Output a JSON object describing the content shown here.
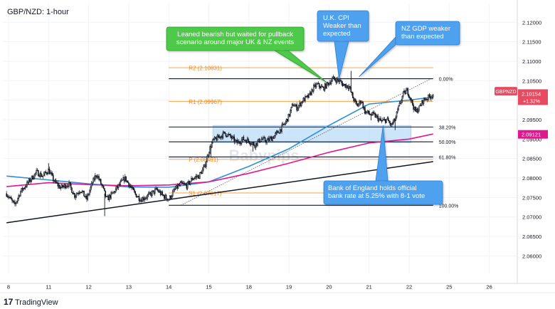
{
  "header": {
    "symbol_title": "GBP/NZD: 1-hour"
  },
  "footer": {
    "brand": "TradingView"
  },
  "watermark": "Babypips",
  "chart_data": {
    "type": "candlestick",
    "title": "GBP/NZD: 1-hour",
    "ylim": [
      2.0555,
      2.1248
    ],
    "y_ticks": [
      2.12,
      2.115,
      2.11,
      2.105,
      2.1,
      2.095,
      2.09,
      2.085,
      2.08,
      2.075,
      2.07,
      2.065,
      2.06
    ],
    "x_ticks": [
      {
        "label": "8",
        "t": 0.0
      },
      {
        "label": "11",
        "t": 1.0
      },
      {
        "label": "12",
        "t": 2.0
      },
      {
        "label": "13",
        "t": 3.0
      },
      {
        "label": "14",
        "t": 4.0
      },
      {
        "label": "15",
        "t": 5.0
      },
      {
        "label": "18",
        "t": 6.0
      },
      {
        "label": "19",
        "t": 7.0
      },
      {
        "label": "20",
        "t": 8.0
      },
      {
        "label": "21",
        "t": 9.0
      },
      {
        "label": "22",
        "t": 10.0
      },
      {
        "label": "25",
        "t": 11.0
      },
      {
        "label": "26",
        "t": 12.0
      }
    ],
    "price_path": [
      [
        -0.05,
        2.076
      ],
      [
        0.05,
        2.0745
      ],
      [
        0.15,
        2.073
      ],
      [
        0.3,
        2.0765
      ],
      [
        0.5,
        2.079
      ],
      [
        0.7,
        2.0815
      ],
      [
        0.85,
        2.0805
      ],
      [
        1.0,
        2.082
      ],
      [
        1.15,
        2.079
      ],
      [
        1.3,
        2.0775
      ],
      [
        1.5,
        2.0785
      ],
      [
        1.65,
        2.0755
      ],
      [
        1.8,
        2.077
      ],
      [
        1.95,
        2.0745
      ],
      [
        2.1,
        2.079
      ],
      [
        2.2,
        2.081
      ],
      [
        2.35,
        2.0775
      ],
      [
        2.45,
        2.0745
      ],
      [
        2.6,
        2.076
      ],
      [
        2.75,
        2.078
      ],
      [
        2.9,
        2.08
      ],
      [
        3.0,
        2.0785
      ],
      [
        3.15,
        2.076
      ],
      [
        3.3,
        2.0745
      ],
      [
        3.5,
        2.0755
      ],
      [
        3.7,
        2.077
      ],
      [
        3.85,
        2.0755
      ],
      [
        4.0,
        2.0745
      ],
      [
        4.15,
        2.077
      ],
      [
        4.3,
        2.0785
      ],
      [
        4.45,
        2.078
      ],
      [
        4.6,
        2.08
      ],
      [
        4.75,
        2.0805
      ],
      [
        4.9,
        2.083
      ],
      [
        5.0,
        2.087
      ],
      [
        5.1,
        2.0895
      ],
      [
        5.25,
        2.0905
      ],
      [
        5.4,
        2.0915
      ],
      [
        5.55,
        2.0905
      ],
      [
        5.7,
        2.089
      ],
      [
        5.85,
        2.09
      ],
      [
        6.0,
        2.0895
      ],
      [
        6.15,
        2.0885
      ],
      [
        6.3,
        2.09
      ],
      [
        6.45,
        2.0895
      ],
      [
        6.6,
        2.0905
      ],
      [
        6.75,
        2.092
      ],
      [
        6.9,
        2.094
      ],
      [
        7.0,
        2.096
      ],
      [
        7.1,
        2.099
      ],
      [
        7.2,
        2.098
      ],
      [
        7.35,
        2.1
      ],
      [
        7.5,
        2.101
      ],
      [
        7.6,
        2.103
      ],
      [
        7.7,
        2.104
      ],
      [
        7.85,
        2.103
      ],
      [
        8.0,
        2.1045
      ],
      [
        8.1,
        2.1055
      ],
      [
        8.25,
        2.105
      ],
      [
        8.35,
        2.104
      ],
      [
        8.5,
        2.1035
      ],
      [
        8.6,
        2.1005
      ],
      [
        8.7,
        2.0985
      ],
      [
        8.8,
        2.1
      ],
      [
        8.9,
        2.097
      ],
      [
        9.0,
        2.0965
      ],
      [
        9.15,
        2.096
      ],
      [
        9.3,
        2.0945
      ],
      [
        9.45,
        2.095
      ],
      [
        9.55,
        2.0935
      ],
      [
        9.65,
        2.095
      ],
      [
        9.75,
        2.0985
      ],
      [
        9.85,
        2.1015
      ],
      [
        9.95,
        2.1025
      ],
      [
        10.05,
        2.1
      ],
      [
        10.15,
        2.097
      ],
      [
        10.25,
        2.098
      ],
      [
        10.35,
        2.1
      ],
      [
        10.45,
        2.1005
      ],
      [
        10.6,
        2.1015
      ]
    ],
    "spikes": [
      {
        "t": 2.4,
        "price": 2.0702
      },
      {
        "t": 1.0,
        "price": 2.0838
      },
      {
        "t": 5.05,
        "price": 2.0855
      },
      {
        "t": 6.1,
        "price": 2.0868
      },
      {
        "t": 8.55,
        "price": 2.1075
      },
      {
        "t": 8.6,
        "price": 2.1008
      },
      {
        "t": 9.65,
        "price": 2.0923
      },
      {
        "t": 9.05,
        "price": 2.0948
      }
    ],
    "moving_averages": [
      {
        "color": "#2f8fd6",
        "points": [
          [
            -0.05,
            2.0805
          ],
          [
            1.0,
            2.0795
          ],
          [
            2.0,
            2.0785
          ],
          [
            3.0,
            2.0777
          ],
          [
            4.0,
            2.0776
          ],
          [
            5.0,
            2.079
          ],
          [
            6.0,
            2.083
          ],
          [
            7.0,
            2.0875
          ],
          [
            8.0,
            2.0935
          ],
          [
            9.0,
            2.099
          ],
          [
            10.0,
            2.1
          ],
          [
            10.6,
            2.1008
          ]
        ]
      },
      {
        "color": "#e0188f",
        "points": [
          [
            -0.05,
            2.0778
          ],
          [
            1.0,
            2.0788
          ],
          [
            2.0,
            2.0783
          ],
          [
            3.0,
            2.078
          ],
          [
            4.0,
            2.0782
          ],
          [
            5.0,
            2.079
          ],
          [
            6.0,
            2.0812
          ],
          [
            7.0,
            2.0838
          ],
          [
            8.0,
            2.0866
          ],
          [
            9.0,
            2.089
          ],
          [
            10.0,
            2.09
          ],
          [
            10.6,
            2.0913
          ]
        ]
      }
    ],
    "trendline": [
      [
        -0.05,
        2.0685
      ],
      [
        10.6,
        2.0842
      ]
    ],
    "fibonacci": {
      "t_start": 4.0,
      "t_end": 10.6,
      "dotted_from": [
        4.3,
        2.073
      ],
      "dotted_to": [
        10.55,
        2.1055
      ],
      "levels": [
        {
          "label": "0.00%",
          "price": 2.1055
        },
        {
          "label": "38.20%",
          "price": 2.0931
        },
        {
          "label": "50.00%",
          "price": 2.0893
        },
        {
          "label": "61.80%",
          "price": 2.0854
        },
        {
          "label": "100.00%",
          "price": 2.073
        }
      ]
    },
    "pivots": [
      {
        "label": "R2 (2.10831)",
        "price": 2.10831,
        "t_start": 4.0,
        "t_end": 10.6
      },
      {
        "label": "R1 (2.09967)",
        "price": 2.09967,
        "t_start": 4.0,
        "t_end": 10.6
      },
      {
        "label": "P (2.08481)",
        "price": 2.08481,
        "t_start": 4.0,
        "t_end": 10.6
      },
      {
        "label": "S1 (2.07617)",
        "price": 2.07617,
        "t_start": 4.0,
        "t_end": 10.6
      }
    ],
    "zone": {
      "t_start": 5.1,
      "t_end": 10.05,
      "price_low": 2.0891,
      "price_high": 2.0935
    },
    "price_badges": [
      {
        "label": "GBPNZD",
        "color": "#e84a5f",
        "price": 2.1021
      },
      {
        "label": "2.10154",
        "sub": "+1.32%",
        "color": "#e84a5f",
        "price": 2.1015
      },
      {
        "label": "2.09121",
        "color": "#e0188f",
        "price": 2.09121
      }
    ],
    "annotations": [
      {
        "kind": "green",
        "text": [
          "Leaned bearish but waited for pullback",
          "scenario around major UK & NZ events"
        ],
        "anchor": [
          7.95,
          2.1045
        ]
      },
      {
        "kind": "blue",
        "text": [
          "U.K. CPI",
          "Weaker than",
          "expected"
        ],
        "anchor": [
          8.25,
          2.1055
        ]
      },
      {
        "kind": "blue",
        "text": [
          "NZ GDP weaker",
          "than expected"
        ],
        "anchor": [
          8.75,
          2.106
        ]
      },
      {
        "kind": "blue",
        "text": [
          "Bank of England holds official",
          "bank rate at 5.25% with 8-1 vote"
        ],
        "anchor": [
          9.35,
          2.0935
        ]
      }
    ]
  }
}
